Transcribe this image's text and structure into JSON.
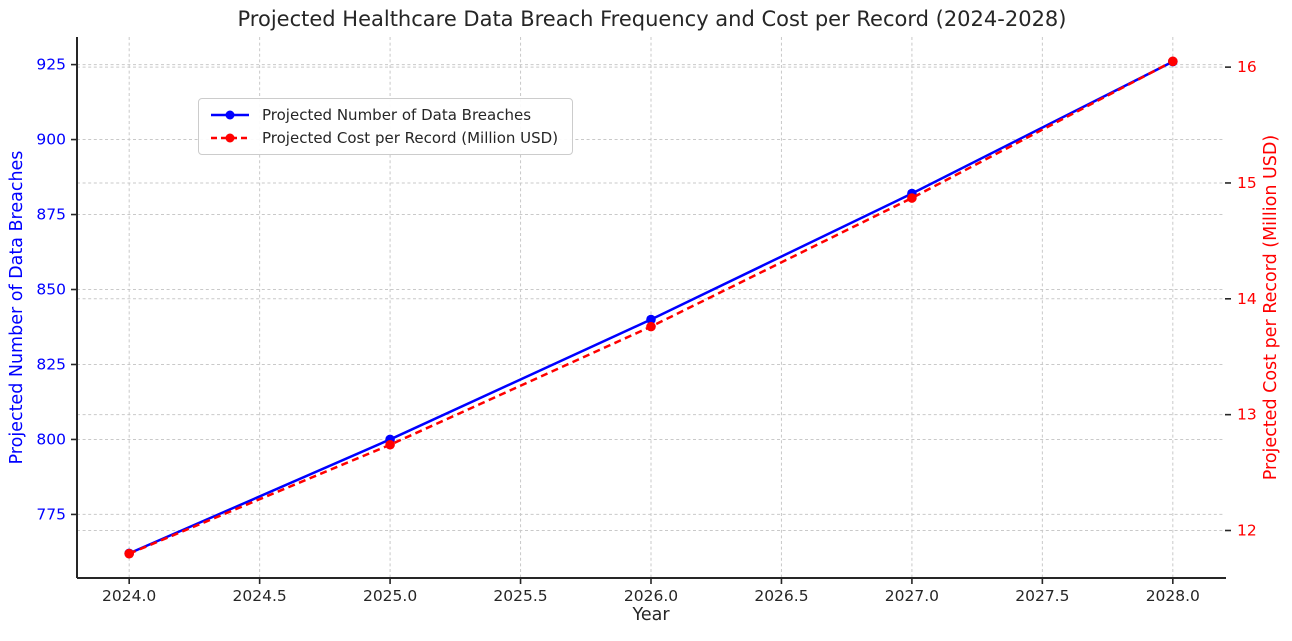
{
  "chart_data": {
    "type": "line",
    "title": "Projected Healthcare Data Breach Frequency and Cost per Record (2024-2028)",
    "xlabel": "Year",
    "ylabel_left": "Projected Number of Data Breaches",
    "ylabel_right": "Projected Cost per Record (Million USD)",
    "x": [
      2024,
      2025,
      2026,
      2027,
      2028
    ],
    "series": [
      {
        "name": "Projected Number of Data Breaches",
        "axis": "left",
        "color": "#0000ff",
        "style": "solid",
        "marker": "circle",
        "values": [
          762,
          800,
          840,
          882,
          926
        ]
      },
      {
        "name": "Projected Cost per Record (Million USD)",
        "axis": "right",
        "color": "#ff0000",
        "style": "dashed",
        "marker": "circle",
        "values": [
          11.8,
          12.74,
          13.76,
          14.87,
          16.05
        ]
      }
    ],
    "xticks": [
      2024.0,
      2024.5,
      2025.0,
      2025.5,
      2026.0,
      2026.5,
      2027.0,
      2027.5,
      2028.0
    ],
    "xtick_labels": [
      "2024.0",
      "2024.5",
      "2025.0",
      "2025.5",
      "2026.0",
      "2026.5",
      "2027.0",
      "2027.5",
      "2028.0"
    ],
    "yticks_left": [
      775,
      800,
      825,
      850,
      875,
      900,
      925
    ],
    "ytick_labels_left": [
      "775",
      "800",
      "825",
      "850",
      "875",
      "900",
      "925"
    ],
    "yticks_right": [
      12,
      13,
      14,
      15,
      16
    ],
    "ytick_labels_right": [
      "12",
      "13",
      "14",
      "15",
      "16"
    ],
    "xlim": [
      2023.8,
      2028.2
    ],
    "ylim_left": [
      753.8,
      934.2
    ],
    "ylim_right": [
      11.59,
      16.26
    ],
    "grid": true,
    "grid_style": "dashed",
    "legend_position": "upper-left-inside",
    "colors": {
      "left_axis": "#0000ff",
      "right_axis": "#ff0000",
      "text": "#262626",
      "grid": "#c9c9c9",
      "spine": "#262626",
      "background": "#ffffff"
    }
  }
}
